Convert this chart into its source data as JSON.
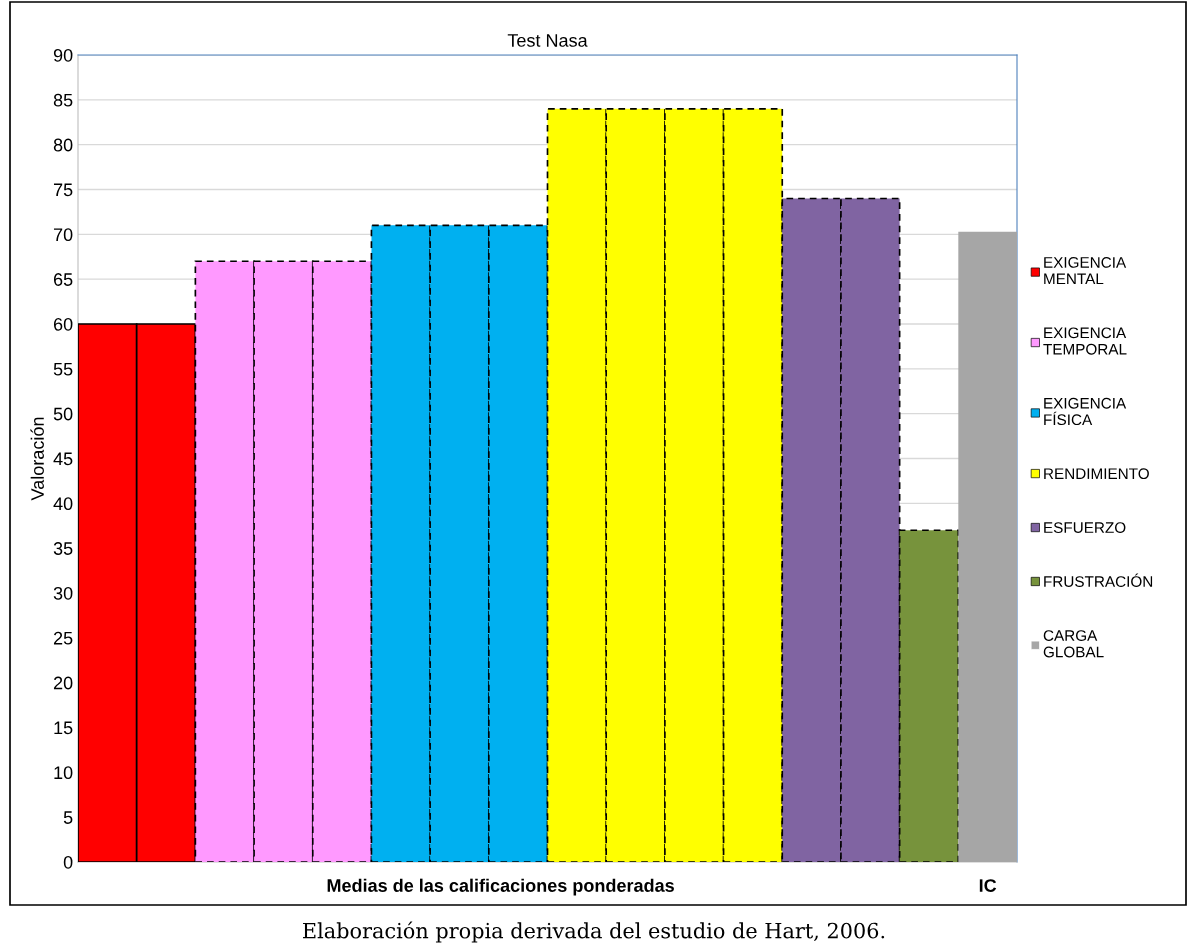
{
  "chart_data": {
    "type": "bar",
    "title": "Test Nasa",
    "ylabel": "Valoración",
    "categories": [
      null,
      null,
      null,
      null,
      null,
      null,
      null,
      null,
      null,
      null,
      null,
      null,
      null,
      null,
      null,
      "IC"
    ],
    "series": [
      {
        "name": "EXIGENCIA\nMENTAL",
        "color": "#ff0000",
        "line_style": "solid",
        "values": [
          60,
          60,
          null,
          null,
          null,
          null,
          null,
          null,
          null,
          null,
          null,
          null,
          null,
          null,
          null,
          null
        ]
      },
      {
        "name": "EXIGENCIA\nTEMPORAL",
        "color": "#ff99ff",
        "line_style": "dashed",
        "values": [
          null,
          null,
          67,
          67,
          67,
          null,
          null,
          null,
          null,
          null,
          null,
          null,
          null,
          null,
          null,
          null
        ]
      },
      {
        "name": "EXIGENCIA\nFÍSICA",
        "color": "#00b0f0",
        "line_style": "dashed",
        "values": [
          null,
          null,
          null,
          null,
          null,
          71,
          71,
          71,
          null,
          null,
          null,
          null,
          null,
          null,
          null,
          null
        ]
      },
      {
        "name": "RENDIMIENTO",
        "color": "#ffff00",
        "line_style": "dashed",
        "values": [
          null,
          null,
          null,
          null,
          null,
          null,
          null,
          null,
          84,
          84,
          84,
          84,
          null,
          null,
          null,
          null
        ]
      },
      {
        "name": "ESFUERZO",
        "color": "#8064a2",
        "line_style": "dashed",
        "values": [
          null,
          null,
          null,
          null,
          null,
          null,
          null,
          null,
          null,
          null,
          null,
          null,
          74,
          74,
          null,
          null
        ]
      },
      {
        "name": "FRUSTRACIÓN",
        "color": "#77933c",
        "line_style": "dashed",
        "values": [
          null,
          null,
          null,
          null,
          null,
          null,
          null,
          null,
          null,
          null,
          null,
          null,
          null,
          null,
          37,
          null
        ]
      },
      {
        "name": "CARGA\nGLOBAL",
        "color": "#a6a6a6",
        "values": [
          null,
          null,
          null,
          null,
          null,
          null,
          null,
          null,
          null,
          null,
          null,
          null,
          null,
          null,
          null,
          70.3
        ]
      }
    ],
    "ylim": [
      0,
      90
    ],
    "yticks": [
      0,
      5,
      10,
      15,
      20,
      25,
      30,
      35,
      40,
      45,
      50,
      55,
      60,
      65,
      70,
      75,
      80,
      85,
      90
    ],
    "grid": "y",
    "legend": "right",
    "annotations": [
      "Medias de las calificaciones ponderadas",
      "Elaboración propia derivada del estudio de Hart, 2006."
    ]
  }
}
